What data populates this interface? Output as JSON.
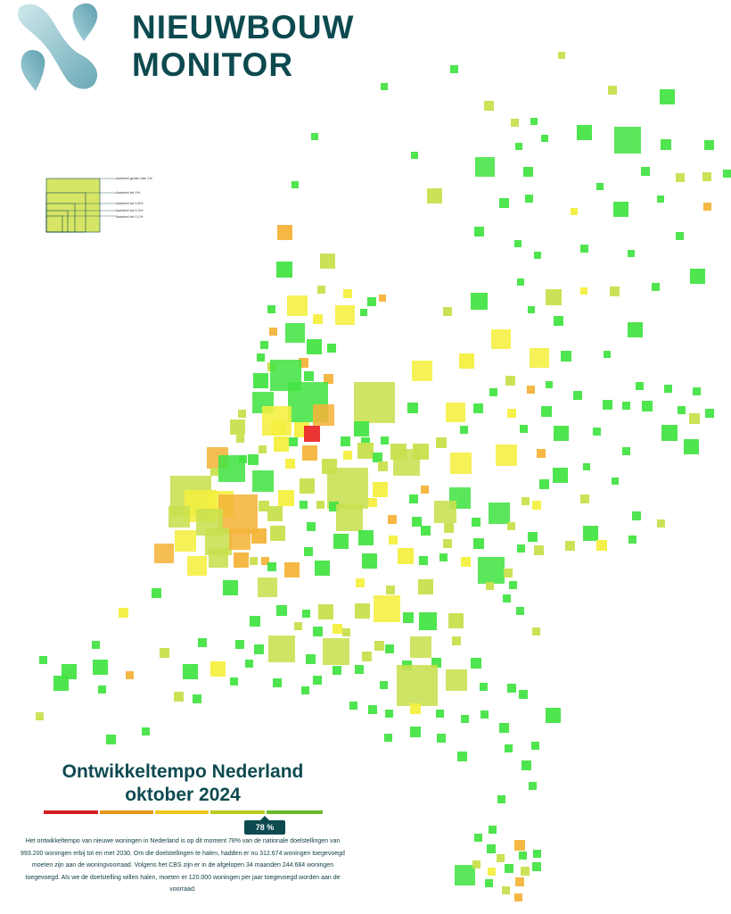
{
  "brand": {
    "line1": "NIEUWBOUW",
    "line2": "MONITOR"
  },
  "colors": {
    "brand_dark": "#0d4a50",
    "logo_light": "#8fc6d0",
    "logo_mid": "#5fa4b3",
    "green": "#44e444",
    "lightgreen": "#7fe54a",
    "lime": "#c8e04e",
    "yellow": "#f4ef40",
    "orange": "#f4b43a",
    "red": "#ea2a2a"
  },
  "legend": {
    "items": [
      "Aandeel groter dan 1%",
      "Aandeel tot 1%",
      "Aandeel tot 0,5%",
      "Aandeel tot 0,3%",
      "Aandeel tot 0,1%"
    ]
  },
  "title": {
    "line1": "Ontwikkeltempo Nederland",
    "line2": "oktober 2024"
  },
  "scale": {
    "colors": [
      "#d41f1f",
      "#e8951b",
      "#f2c51a",
      "#b9cc1f",
      "#6bb92a"
    ],
    "value_label": "78 %",
    "value": 78
  },
  "description": "Het ontwikkeltempo van nieuwe woningen in Nederland is op dit moment 78% van de nationale doelstellingen van 993.200 woningen erbij tot en met 2030. Om die doelstellingen te halen, hadden er nu 312.674 woningen toegevoegd moeten zijn aan de woningvoorraad. Volgens het CBS zijn er in de afgelopen 34 maanden 244.684 woningen toegevoegd. Als we de doelstelling willen halen, moeten er 120.000 woningen per jaar toegevoegd worden aan de voorraad."
}
